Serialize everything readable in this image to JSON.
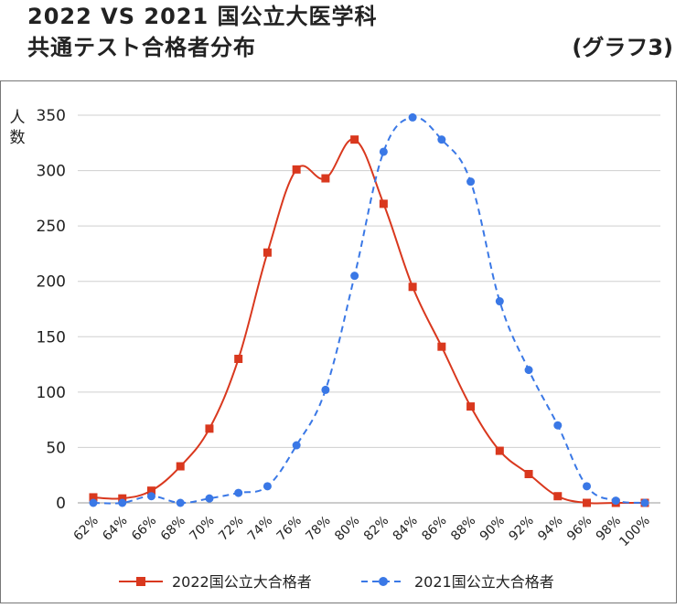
{
  "header": {
    "title": "2022 VS 2021 国公立大医学科",
    "subtitle": "共通テスト合格者分布",
    "tag": "(グラフ3)"
  },
  "chart_data": {
    "type": "line",
    "title": "2022 VS 2021 国公立大医学科 共通テスト合格者分布",
    "ylabel": "人数",
    "ylim": [
      0,
      350
    ],
    "yticks": [
      0,
      50,
      100,
      150,
      200,
      250,
      300,
      350
    ],
    "grid": true,
    "legend_position": "bottom",
    "categories": [
      "62%",
      "64%",
      "66%",
      "68%",
      "70%",
      "72%",
      "74%",
      "76%",
      "78%",
      "80%",
      "82%",
      "84%",
      "86%",
      "88%",
      "90%",
      "92%",
      "94%",
      "96%",
      "98%",
      "100%"
    ],
    "series": [
      {
        "name": "2022国公立大合格者",
        "color": "#d9381e",
        "marker": "square",
        "dash": "solid",
        "values": [
          5,
          4,
          11,
          33,
          67,
          130,
          226,
          301,
          293,
          328,
          270,
          195,
          141,
          87,
          47,
          26,
          6,
          0,
          0,
          0
        ]
      },
      {
        "name": "2021国公立大合格者",
        "color": "#3a78e6",
        "marker": "circle",
        "dash": "dashed",
        "values": [
          0,
          0,
          6,
          0,
          4,
          9,
          15,
          52,
          102,
          205,
          317,
          348,
          328,
          290,
          182,
          120,
          70,
          15,
          2,
          0
        ]
      }
    ]
  }
}
